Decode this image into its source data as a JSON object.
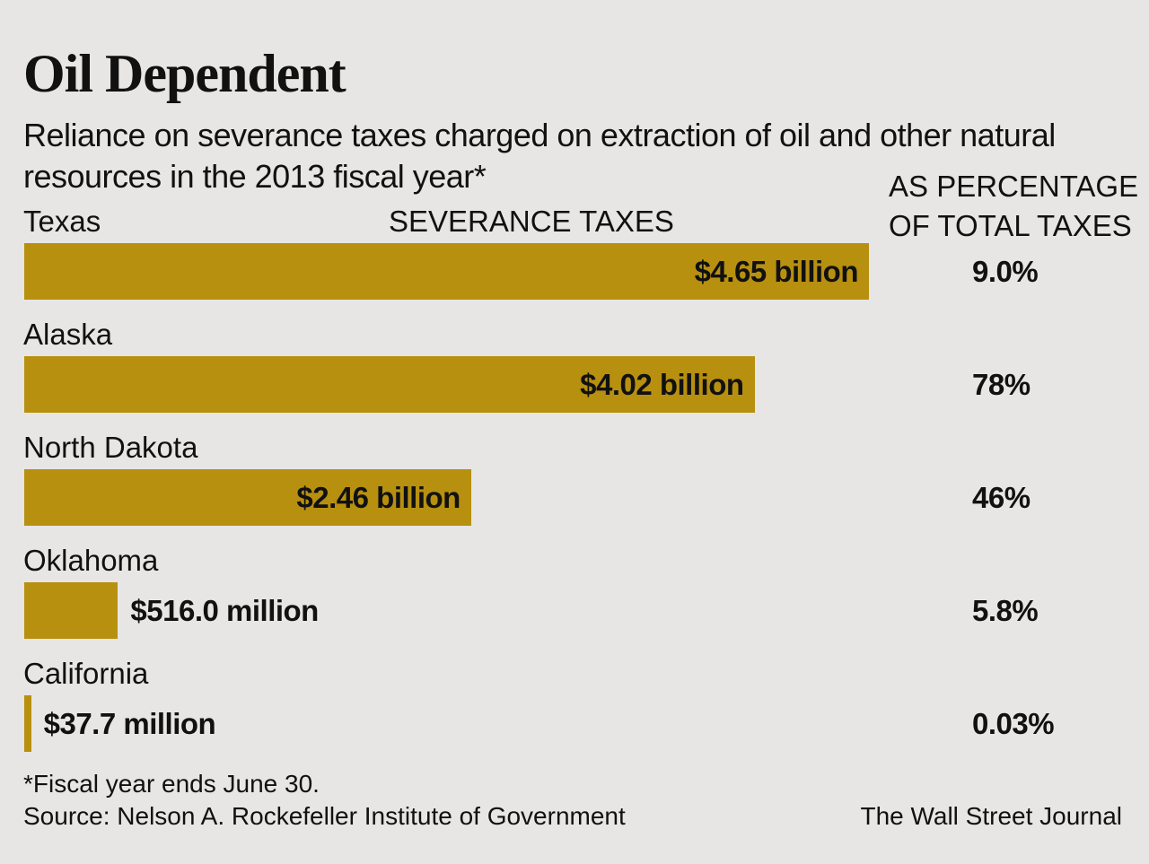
{
  "chart_data": {
    "type": "bar",
    "orientation": "horizontal",
    "title": "Oil Dependent",
    "subtitle": "Reliance on severance taxes charged on extraction of oil and other natural resources in the 2013 fiscal year*",
    "categories": [
      "Texas",
      "Alaska",
      "North Dakota",
      "Oklahoma",
      "California"
    ],
    "series": [
      {
        "name": "SEVERANCE TAXES",
        "color": "#b8900f",
        "values": [
          4650,
          4020,
          2460,
          516.0,
          37.7
        ],
        "value_labels": [
          "$4.65 billion",
          "$4.02 billion",
          "$2.46 billion",
          "$516.0 million",
          "$37.7 million"
        ]
      },
      {
        "name": "AS PERCENTAGE OF TOTAL TAXES",
        "values": [
          9.0,
          78,
          46,
          5.8,
          0.03
        ],
        "value_labels": [
          "9.0%",
          "78%",
          "46%",
          "5.8%",
          "0.03%"
        ]
      }
    ]
  },
  "footnote": "*Fiscal year ends June 30.",
  "source": "Source: Nelson A. Rockefeller Institute of Government",
  "credit": "The Wall Street Journal"
}
